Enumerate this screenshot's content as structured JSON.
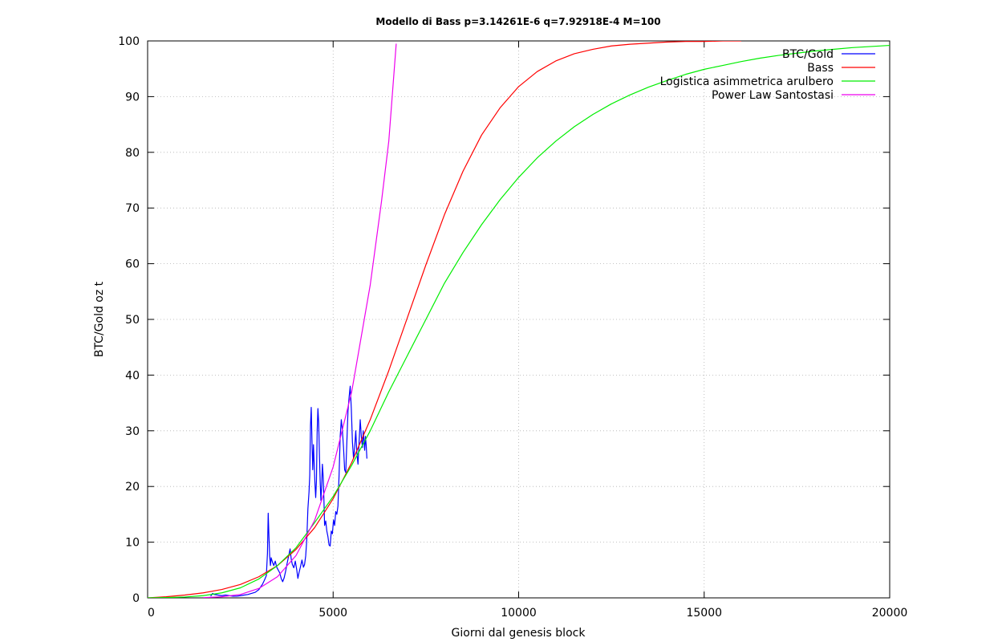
{
  "chart_data": {
    "type": "line",
    "title": "Modello di Bass p=3.14261E-6 q=7.92918E-4 M=100",
    "xlabel": "Giorni dal genesis block",
    "ylabel": "BTC/Gold oz t",
    "xlim": [
      0,
      20000
    ],
    "ylim": [
      0,
      100
    ],
    "x_ticks": [
      0,
      5000,
      10000,
      15000,
      20000
    ],
    "y_ticks": [
      0,
      10,
      20,
      30,
      40,
      50,
      60,
      70,
      80,
      90,
      100
    ],
    "grid": true,
    "legend_position": "top-right",
    "series": [
      {
        "name": "BTC/Gold",
        "color": "#0000ff",
        "x": [
          1700,
          1750,
          1800,
          1900,
          2000,
          2100,
          2200,
          2300,
          2400,
          2500,
          2600,
          2700,
          2800,
          2900,
          3000,
          3050,
          3100,
          3150,
          3200,
          3230,
          3250,
          3270,
          3290,
          3310,
          3330,
          3360,
          3400,
          3440,
          3480,
          3520,
          3560,
          3600,
          3640,
          3680,
          3720,
          3760,
          3800,
          3840,
          3870,
          3900,
          3940,
          3980,
          4020,
          4050,
          4080,
          4120,
          4160,
          4200,
          4230,
          4260,
          4290,
          4320,
          4350,
          4370,
          4390,
          4410,
          4430,
          4450,
          4470,
          4490,
          4510,
          4530,
          4550,
          4570,
          4590,
          4610,
          4630,
          4650,
          4670,
          4690,
          4710,
          4730,
          4750,
          4770,
          4800,
          4830,
          4860,
          4890,
          4920,
          4950,
          4980,
          5010,
          5040,
          5070,
          5100,
          5130,
          5160,
          5190,
          5220,
          5250,
          5280,
          5310,
          5340,
          5370,
          5400,
          5430,
          5460,
          5490,
          5520,
          5550,
          5580,
          5610,
          5640,
          5670,
          5700,
          5730,
          5760,
          5790,
          5810,
          5830,
          5850,
          5870,
          5890,
          5910
        ],
        "y": [
          0.3,
          0.8,
          0.6,
          0.5,
          0.4,
          0.5,
          0.4,
          0.3,
          0.3,
          0.4,
          0.5,
          0.6,
          0.8,
          1.0,
          1.5,
          2.0,
          2.5,
          3.2,
          4.0,
          8.0,
          15.2,
          11.0,
          7.5,
          5.8,
          7.2,
          6.5,
          5.8,
          6.6,
          5.5,
          5.0,
          4.5,
          3.5,
          2.9,
          3.6,
          4.8,
          6.2,
          7.5,
          8.8,
          7.0,
          6.0,
          5.4,
          6.6,
          5.0,
          3.5,
          4.5,
          5.6,
          6.8,
          5.5,
          6.0,
          7.5,
          10.5,
          16.0,
          19.0,
          22.0,
          31.0,
          34.2,
          28.0,
          23.0,
          27.5,
          24.0,
          20.5,
          18.0,
          21.0,
          30.0,
          34.0,
          31.5,
          26.0,
          21.0,
          17.5,
          20.0,
          24.0,
          22.0,
          18.0,
          13.0,
          13.8,
          12.0,
          11.0,
          9.5,
          9.3,
          12.0,
          11.5,
          14.0,
          13.0,
          15.5,
          15.0,
          16.5,
          22.0,
          29.0,
          32.0,
          30.0,
          27.0,
          23.0,
          22.5,
          28.0,
          33.5,
          36.0,
          38.0,
          34.0,
          28.0,
          25.0,
          27.0,
          30.0,
          26.0,
          24.0,
          28.0,
          32.0,
          29.0,
          27.0,
          30.0,
          28.5,
          26.5,
          29.0,
          27.5,
          25.0
        ]
      },
      {
        "name": "Bass",
        "color": "#ff0000",
        "x": [
          0,
          500,
          1000,
          1500,
          2000,
          2500,
          3000,
          3500,
          4000,
          4500,
          5000,
          5500,
          6000,
          6500,
          7000,
          7500,
          8000,
          8500,
          9000,
          9500,
          10000,
          10500,
          11000,
          11500,
          12000,
          12500,
          13000,
          13500,
          14000,
          14500,
          15000,
          15500,
          16000
        ],
        "y": [
          0,
          0.2,
          0.5,
          0.9,
          1.5,
          2.4,
          3.8,
          5.8,
          8.7,
          12.6,
          17.8,
          24.3,
          32.0,
          40.8,
          50.3,
          59.8,
          68.8,
          76.6,
          83.1,
          88.0,
          91.8,
          94.5,
          96.4,
          97.7,
          98.5,
          99.1,
          99.4,
          99.6,
          99.8,
          99.9,
          99.9,
          100,
          100
        ]
      },
      {
        "name": "Logistica asimmetrica arulbero",
        "color": "#00ee00",
        "x": [
          0,
          500,
          1000,
          1500,
          2000,
          2500,
          3000,
          3500,
          4000,
          4500,
          5000,
          5500,
          6000,
          6500,
          7000,
          7500,
          8000,
          8500,
          9000,
          9500,
          10000,
          10500,
          11000,
          11500,
          12000,
          12500,
          13000,
          13500,
          14000,
          14500,
          15000,
          15500,
          16000,
          16500,
          17000,
          17500,
          18000,
          18500,
          19000,
          19500,
          20000
        ],
        "y": [
          0,
          0.05,
          0.15,
          0.4,
          0.9,
          1.8,
          3.4,
          5.8,
          9.0,
          13.5,
          18.2,
          23.8,
          30.0,
          37.0,
          43.5,
          50.0,
          56.5,
          62.0,
          67.0,
          71.5,
          75.5,
          79.0,
          82.0,
          84.6,
          86.8,
          88.7,
          90.3,
          91.7,
          92.9,
          94.0,
          94.9,
          95.6,
          96.3,
          96.9,
          97.4,
          97.8,
          98.2,
          98.5,
          98.8,
          99.0,
          99.2
        ]
      },
      {
        "name": "Power Law Santostasi",
        "color": "#ee00ee",
        "x": [
          1500,
          2000,
          2500,
          3000,
          3500,
          4000,
          4500,
          5000,
          5500,
          6000,
          6300,
          6500,
          6700
        ],
        "y": [
          0.04,
          0.2,
          0.6,
          1.7,
          3.8,
          7.6,
          13.9,
          23.5,
          37.0,
          56.2,
          71.0,
          82.0,
          99.5
        ]
      }
    ]
  }
}
